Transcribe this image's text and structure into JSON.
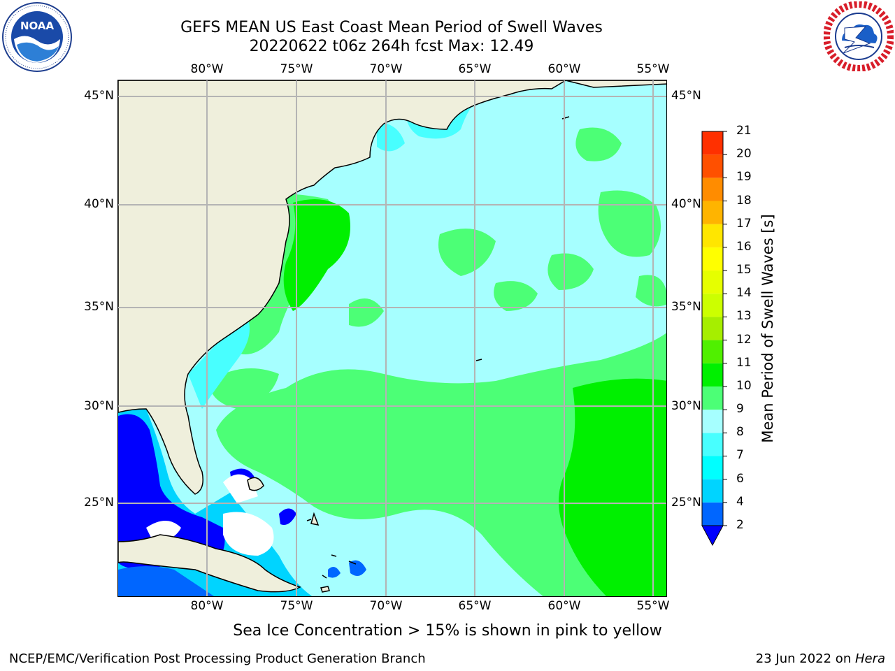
{
  "header": {
    "title": "GEFS MEAN US East Coast Mean Period of Swell Waves",
    "subtitle": "20220622 t06z 264h fcst   Max: 12.49"
  },
  "logos": {
    "left": {
      "icon": "noaa-logo",
      "text": "NOAA"
    },
    "right": {
      "icon": "national-weather-service-logo"
    }
  },
  "map": {
    "lon_labels": [
      "80°W",
      "75°W",
      "70°W",
      "65°W",
      "60°W",
      "55°W"
    ],
    "lat_labels": [
      "45°N",
      "40°N",
      "35°N",
      "30°N",
      "25°N"
    ],
    "lon_range": [
      -84.4,
      -53.5
    ],
    "lat_range": [
      20.5,
      45.8
    ],
    "colors": {
      "land": "#efefdc",
      "grid": "#b4b4b4",
      "coast": "#000000"
    }
  },
  "colorbar": {
    "title": "Mean Period of Swell Waves [s]",
    "ticks": [
      "2",
      "4",
      "6",
      "7",
      "8",
      "9",
      "10",
      "11",
      "12",
      "13",
      "14",
      "15",
      "16",
      "17",
      "18",
      "19",
      "20",
      "21"
    ],
    "colors": [
      "#0000ff",
      "#0066ff",
      "#00d4ff",
      "#00ffff",
      "#48ffff",
      "#a6ffff",
      "#4cff76",
      "#00f000",
      "#50f000",
      "#a6ee00",
      "#ccff00",
      "#e6ff00",
      "#ffff00",
      "#ffe600",
      "#ffb400",
      "#ff8c00",
      "#ff5000",
      "#ff3000",
      "#ff0000"
    ]
  },
  "note": "Sea Ice Concentration > 15% is shown in pink to yellow",
  "footer": {
    "left": "NCEP/EMC/Verification Post Processing Product Generation Branch",
    "date": "23 Jun 2022 on ",
    "host": "Hera"
  }
}
